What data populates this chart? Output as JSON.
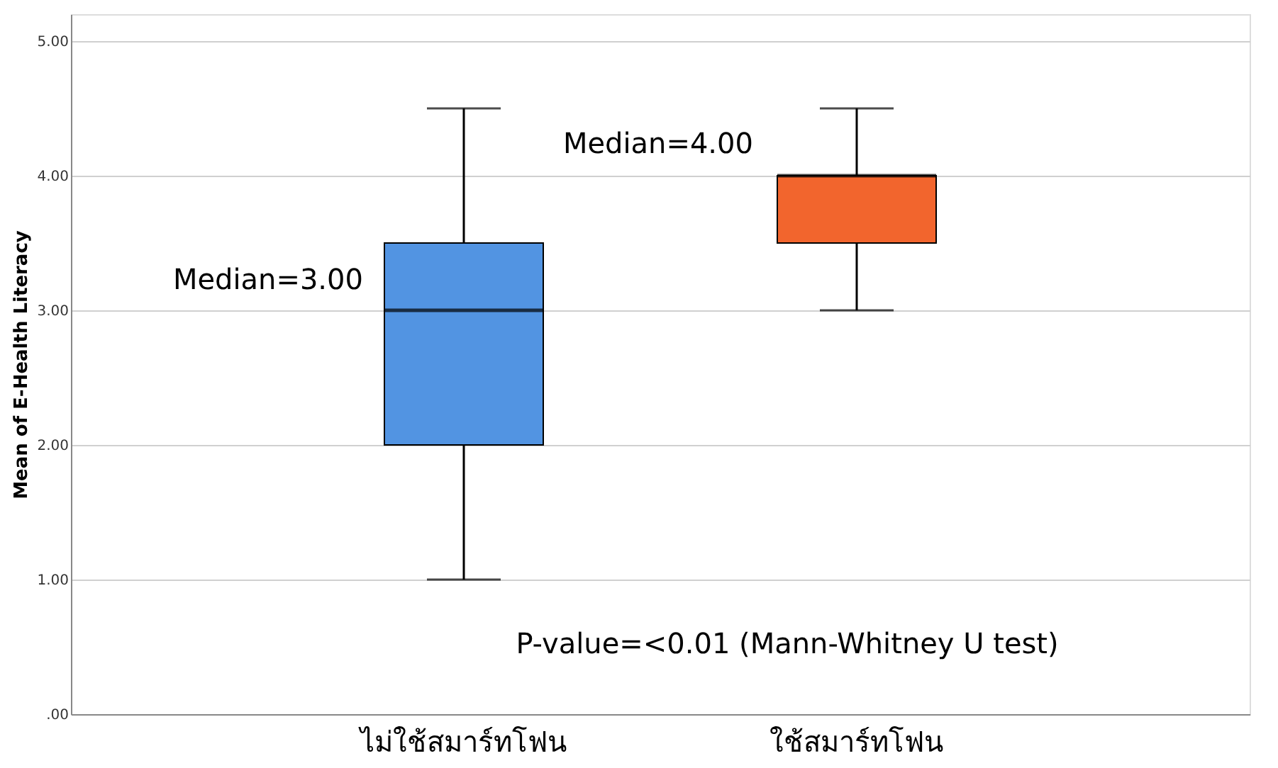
{
  "chart_data": {
    "type": "box",
    "ylabel": "Mean of E-Health Literacy",
    "categories": [
      "ไม่ใช้สมาร์ทโฟน",
      "ใช้สมาร์ทโฟน"
    ],
    "boxes": [
      {
        "low": 1.0,
        "q1": 2.0,
        "median": 3.0,
        "q3": 3.5,
        "high": 4.5
      },
      {
        "low": 3.0,
        "q1": 3.5,
        "median": 4.0,
        "q3": 4.0,
        "high": 4.5
      }
    ],
    "colors": [
      "#5294e2",
      "#f2652d"
    ],
    "ylim": [
      0,
      5.2
    ],
    "yticks": [
      {
        "value": 0,
        "label": ".00"
      },
      {
        "value": 1,
        "label": "1.00"
      },
      {
        "value": 2,
        "label": "2.00"
      },
      {
        "value": 3,
        "label": "3.00"
      },
      {
        "value": 4,
        "label": "4.00"
      },
      {
        "value": 5,
        "label": "5.00"
      }
    ],
    "grid": "y",
    "annotations": [
      "Median=3.00",
      "Median=4.00",
      "P-value=<0.01 (Mann-Whitney U test)"
    ]
  }
}
